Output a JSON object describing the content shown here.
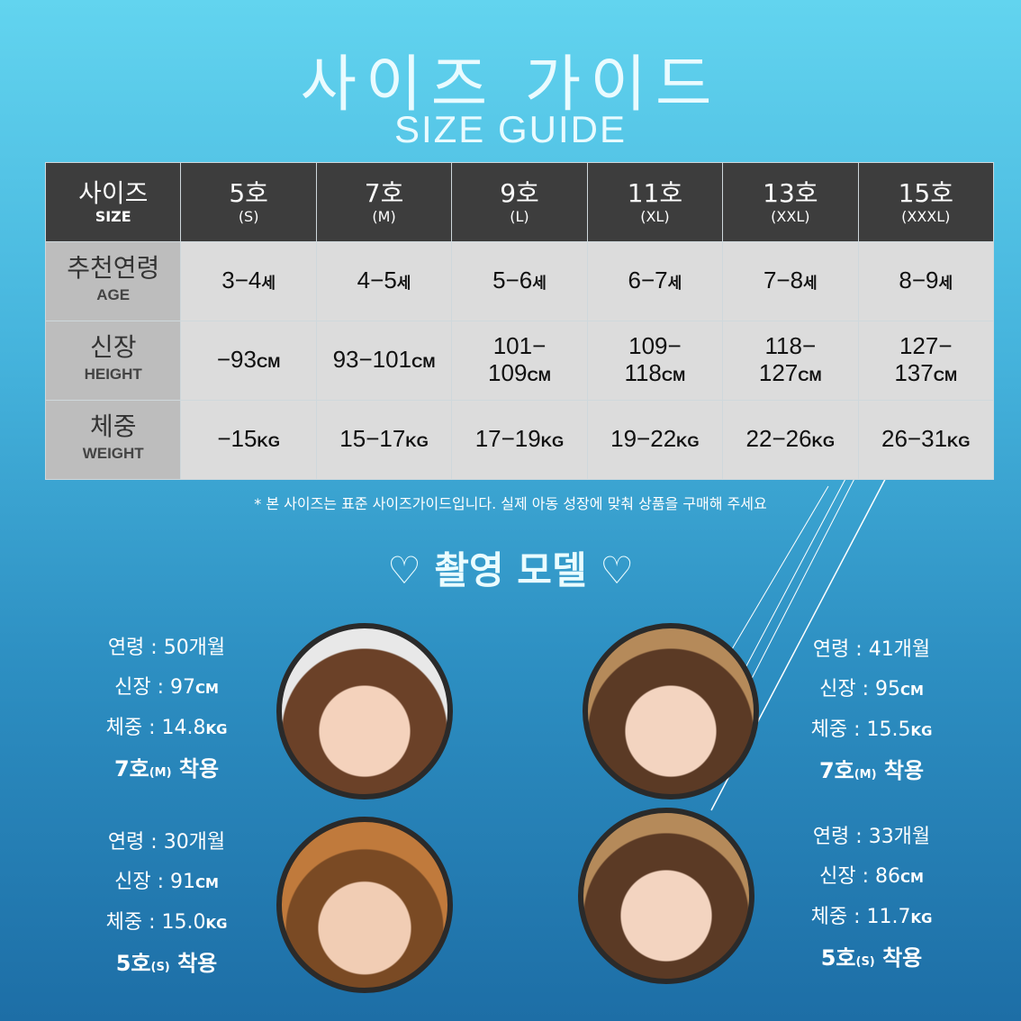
{
  "title": "사이즈 가이드",
  "subtitle": "SIZE GUIDE",
  "table": {
    "corner": {
      "ko": "사이즈",
      "en": "SIZE"
    },
    "sizes": [
      {
        "ko": "5호",
        "en": "(S)"
      },
      {
        "ko": "7호",
        "en": "(M)"
      },
      {
        "ko": "9호",
        "en": "(L)"
      },
      {
        "ko": "11호",
        "en": "(XL)"
      },
      {
        "ko": "13호",
        "en": "(XXL)"
      },
      {
        "ko": "15호",
        "en": "(XXXL)"
      }
    ],
    "rows": [
      {
        "ko": "추천연령",
        "en": "AGE",
        "unit": "세",
        "values": [
          "3−4",
          "4−5",
          "5−6",
          "6−7",
          "7−8",
          "8−9"
        ]
      },
      {
        "ko": "신장",
        "en": "HEIGHT",
        "unit": "CM",
        "values": [
          "−93",
          "93−101",
          "101−\n109",
          "109−\n118",
          "118−\n127",
          "127−\n137"
        ]
      },
      {
        "ko": "체중",
        "en": "WEIGHT",
        "unit": "KG",
        "values": [
          "−15",
          "15−17",
          "17−19",
          "19−22",
          "22−26",
          "26−31"
        ]
      }
    ]
  },
  "note": "* 본 사이즈는 표준 사이즈가이드입니다. 실제 아동 성장에 맞춰 상품을 구매해 주세요",
  "models_title": "♡ 촬영 모델 ♡",
  "models": [
    {
      "age": "연령 : 50개월",
      "height": "신장 : 97",
      "height_unit": "CM",
      "weight": "체중 : 14.8",
      "weight_unit": "KG",
      "size": "7호",
      "size_sub": "(M)",
      "wear": " 착용"
    },
    {
      "age": "연령 : 41개월",
      "height": "신장 : 95",
      "height_unit": "CM",
      "weight": "체중 : 15.5",
      "weight_unit": "KG",
      "size": "7호",
      "size_sub": "(M)",
      "wear": " 착용"
    },
    {
      "age": "연령 : 30개월",
      "height": "신장 : 91",
      "height_unit": "CM",
      "weight": "체중 : 15.0",
      "weight_unit": "KG",
      "size": "5호",
      "size_sub": "(S)",
      "wear": " 착용"
    },
    {
      "age": "연령 : 33개월",
      "height": "신장 : 86",
      "height_unit": "CM",
      "weight": "체중 : 11.7",
      "weight_unit": "KG",
      "size": "5호",
      "size_sub": "(S)",
      "wear": " 착용"
    }
  ]
}
